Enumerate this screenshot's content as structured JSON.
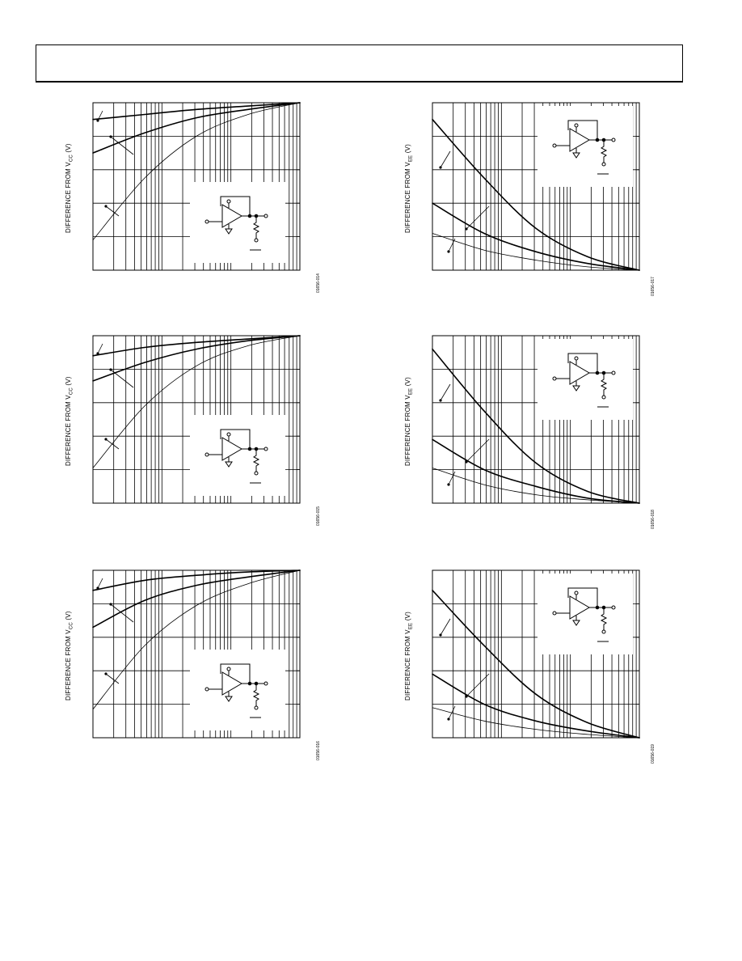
{
  "page": {
    "ylabel_prefix": "DIFFERENCE FROM V"
  },
  "charts": [
    {
      "id": "c1",
      "figure_code": "01656-014",
      "ylabel_sub": "CC",
      "ylabel_suffix": " (V)",
      "ref": "VCC",
      "chart_data": {
        "type": "line",
        "xscale": "log",
        "grid": true,
        "series": [
          {
            "values": [
              0.9,
              0.93,
              0.96,
              0.98,
              1.0
            ]
          },
          {
            "values": [
              0.7,
              0.82,
              0.91,
              0.96,
              1.0
            ]
          },
          {
            "values": [
              0.18,
              0.55,
              0.8,
              0.93,
              1.0
            ]
          }
        ]
      }
    },
    {
      "id": "c2",
      "figure_code": "01656-015",
      "ylabel_sub": "CC",
      "ylabel_suffix": " (V)",
      "ref": "VCC",
      "chart_data": {
        "type": "line",
        "xscale": "log",
        "grid": true,
        "series": [
          {
            "values": [
              0.88,
              0.93,
              0.96,
              0.98,
              1.0
            ]
          },
          {
            "values": [
              0.73,
              0.84,
              0.92,
              0.97,
              1.0
            ]
          },
          {
            "values": [
              0.21,
              0.58,
              0.82,
              0.94,
              1.0
            ]
          }
        ]
      }
    },
    {
      "id": "c3",
      "figure_code": "01656-016",
      "ylabel_sub": "CC",
      "ylabel_suffix": " (V)",
      "ref": "VCC",
      "chart_data": {
        "type": "line",
        "xscale": "log",
        "grid": true,
        "series": [
          {
            "values": [
              0.88,
              0.94,
              0.97,
              0.99,
              1.0
            ]
          },
          {
            "values": [
              0.66,
              0.82,
              0.91,
              0.96,
              1.0
            ]
          },
          {
            "values": [
              0.17,
              0.55,
              0.79,
              0.92,
              1.0
            ]
          }
        ]
      }
    },
    {
      "id": "c4",
      "figure_code": "01656-017",
      "ylabel_sub": "EE",
      "ylabel_suffix": " (V)",
      "ref": "VEE",
      "chart_data": {
        "type": "line",
        "xscale": "log",
        "grid": true,
        "series": [
          {
            "values": [
              0.9,
              0.55,
              0.25,
              0.08,
              0.0
            ]
          },
          {
            "values": [
              0.4,
              0.22,
              0.11,
              0.04,
              0.0
            ]
          },
          {
            "values": [
              0.22,
              0.12,
              0.06,
              0.02,
              0.0
            ]
          }
        ]
      }
    },
    {
      "id": "c5",
      "figure_code": "01656-018",
      "ylabel_sub": "EE",
      "ylabel_suffix": " (V)",
      "ref": "VEE",
      "chart_data": {
        "type": "line",
        "xscale": "log",
        "grid": true,
        "series": [
          {
            "values": [
              0.92,
              0.55,
              0.24,
              0.07,
              0.0
            ]
          },
          {
            "values": [
              0.38,
              0.2,
              0.1,
              0.03,
              0.0
            ]
          },
          {
            "values": [
              0.21,
              0.11,
              0.05,
              0.02,
              0.0
            ]
          }
        ]
      }
    },
    {
      "id": "c6",
      "figure_code": "01656-019",
      "ylabel_sub": "EE",
      "ylabel_suffix": " (V)",
      "ref": "VEE",
      "chart_data": {
        "type": "line",
        "xscale": "log",
        "grid": true,
        "series": [
          {
            "values": [
              0.88,
              0.55,
              0.26,
              0.09,
              0.0
            ]
          },
          {
            "values": [
              0.38,
              0.2,
              0.1,
              0.04,
              0.0
            ]
          },
          {
            "values": [
              0.18,
              0.1,
              0.05,
              0.02,
              0.0
            ]
          }
        ]
      }
    }
  ]
}
